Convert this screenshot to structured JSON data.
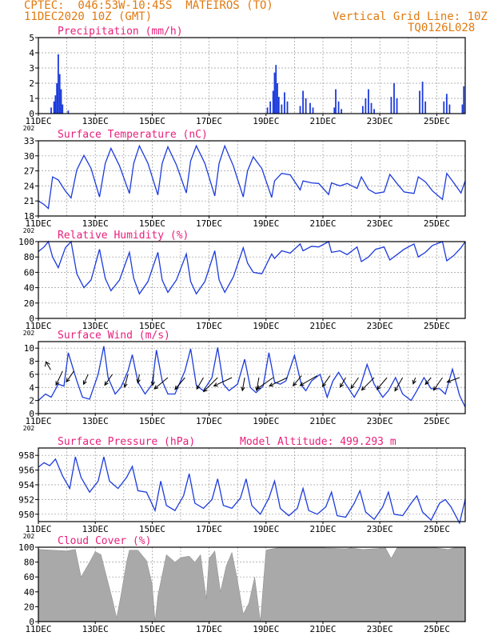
{
  "header": {
    "line1": "CPTEC:  046:53W-10:45S  MATEIROS (TO)",
    "line2": "11DEC2020 10Z (GMT)",
    "grid_note": "Vertical Grid Line: 10Z",
    "code": "TQ0126L028"
  },
  "colors": {
    "header": "#e07a10",
    "title": "#e8207c",
    "series": "#1c3bdc",
    "bars": "#1c3bdc",
    "cloud": "#a9a9a9",
    "arrow": "#000000"
  },
  "x_axis": {
    "start_day": 11,
    "end_day": 26,
    "tick_days": [
      11,
      13,
      15,
      17,
      19,
      21,
      23,
      25
    ],
    "tick_labels": [
      "11DEC",
      "13DEC",
      "15DEC",
      "17DEC",
      "19DEC",
      "21DEC",
      "23DEC",
      "25DEC"
    ],
    "year_stub": "202"
  },
  "chart_data": [
    {
      "type": "bar",
      "title": "Precipitation (mm/h)",
      "ylim": [
        0,
        5
      ],
      "yticks": [
        "0",
        "1",
        "2",
        "3",
        "4",
        "5"
      ],
      "x": [
        11.45,
        11.55,
        11.6,
        11.65,
        11.7,
        11.75,
        11.8,
        11.85,
        12.05,
        19.05,
        19.15,
        19.25,
        19.3,
        19.35,
        19.4,
        19.45,
        19.55,
        19.65,
        19.75,
        20.2,
        20.3,
        20.4,
        20.55,
        20.65,
        21.4,
        21.45,
        21.55,
        21.65,
        22.4,
        22.5,
        22.6,
        22.7,
        22.8,
        23.4,
        23.5,
        23.6,
        24.4,
        24.5,
        24.6,
        25.25,
        25.35,
        25.45,
        25.9,
        25.95
      ],
      "values": [
        0.4,
        0.8,
        1.2,
        2.0,
        3.9,
        2.6,
        1.6,
        0.6,
        0.2,
        0.4,
        0.8,
        1.5,
        2.7,
        3.2,
        2.0,
        1.1,
        0.6,
        1.4,
        0.8,
        0.5,
        1.5,
        1.0,
        0.7,
        0.4,
        0.4,
        1.6,
        0.8,
        0.3,
        0.5,
        1.0,
        1.6,
        0.7,
        0.3,
        1.1,
        2.0,
        1.0,
        1.5,
        2.1,
        0.8,
        0.8,
        1.3,
        0.6,
        0.6,
        1.8
      ]
    },
    {
      "type": "line",
      "title": "Surface Temperature (nC)",
      "ylim": [
        18,
        33
      ],
      "yticks": [
        "18",
        "21",
        "24",
        "27",
        "30",
        "33"
      ],
      "x": [
        11.0,
        11.2,
        11.35,
        11.5,
        11.7,
        11.95,
        12.15,
        12.35,
        12.6,
        12.85,
        13.15,
        13.35,
        13.55,
        13.85,
        14.2,
        14.35,
        14.55,
        14.85,
        15.2,
        15.35,
        15.55,
        15.85,
        16.2,
        16.35,
        16.55,
        16.85,
        17.2,
        17.35,
        17.55,
        17.85,
        18.2,
        18.35,
        18.55,
        18.85,
        19.2,
        19.3,
        19.55,
        19.85,
        20.2,
        20.3,
        20.6,
        20.85,
        21.2,
        21.3,
        21.6,
        21.85,
        22.2,
        22.35,
        22.6,
        22.85,
        23.15,
        23.35,
        23.6,
        23.85,
        24.2,
        24.35,
        24.6,
        24.85,
        25.2,
        25.35,
        25.6,
        25.85,
        26.0
      ],
      "values": [
        21.0,
        20.3,
        19.5,
        25.8,
        25.2,
        23.0,
        21.6,
        27.2,
        30.1,
        27.5,
        21.8,
        28.5,
        31.5,
        28.0,
        22.5,
        28.5,
        32.0,
        28.5,
        22.2,
        28.5,
        31.8,
        28.2,
        22.6,
        29.0,
        32.0,
        28.5,
        22.0,
        28.5,
        32.0,
        28.0,
        21.8,
        27.0,
        29.8,
        27.5,
        21.7,
        25.0,
        26.5,
        26.2,
        23.2,
        25.0,
        24.6,
        24.5,
        22.3,
        24.6,
        24.0,
        24.5,
        23.5,
        25.8,
        23.3,
        22.5,
        22.8,
        26.3,
        24.5,
        22.8,
        22.5,
        25.8,
        24.8,
        23.0,
        21.3,
        26.5,
        24.6,
        22.6,
        25.0
      ]
    },
    {
      "type": "line",
      "title": "Relative Humidity (%)",
      "ylim": [
        0,
        100
      ],
      "yticks": [
        "0",
        "20",
        "40",
        "60",
        "80",
        "100"
      ],
      "x": [
        11.0,
        11.2,
        11.35,
        11.5,
        11.7,
        11.95,
        12.15,
        12.35,
        12.6,
        12.85,
        13.15,
        13.35,
        13.55,
        13.85,
        14.2,
        14.35,
        14.55,
        14.85,
        15.2,
        15.35,
        15.55,
        15.85,
        16.2,
        16.35,
        16.55,
        16.85,
        17.2,
        17.35,
        17.55,
        17.85,
        18.2,
        18.35,
        18.55,
        18.85,
        19.2,
        19.3,
        19.55,
        19.85,
        20.2,
        20.3,
        20.6,
        20.85,
        21.2,
        21.3,
        21.6,
        21.85,
        22.2,
        22.35,
        22.6,
        22.85,
        23.15,
        23.35,
        23.6,
        23.85,
        24.2,
        24.35,
        24.6,
        24.85,
        25.2,
        25.35,
        25.6,
        25.85,
        26.0
      ],
      "values": [
        87,
        93,
        100,
        80,
        66,
        92,
        100,
        58,
        40,
        50,
        90,
        52,
        36,
        50,
        86,
        52,
        32,
        48,
        86,
        50,
        34,
        50,
        84,
        48,
        32,
        48,
        88,
        50,
        34,
        54,
        92,
        72,
        60,
        58,
        84,
        78,
        88,
        85,
        97,
        88,
        94,
        93,
        100,
        86,
        88,
        83,
        93,
        74,
        80,
        90,
        93,
        76,
        83,
        90,
        97,
        80,
        86,
        95,
        100,
        75,
        82,
        92,
        100
      ]
    },
    {
      "type": "line",
      "title": "Surface Wind (m/s)",
      "ylim": [
        0,
        11
      ],
      "yticks": [
        "0",
        "2",
        "4",
        "6",
        "8",
        "10"
      ],
      "x": [
        11.0,
        11.25,
        11.45,
        11.7,
        11.9,
        12.05,
        12.35,
        12.55,
        12.8,
        13.1,
        13.3,
        13.45,
        13.7,
        13.9,
        14.15,
        14.3,
        14.5,
        14.75,
        15.0,
        15.15,
        15.35,
        15.55,
        15.8,
        16.15,
        16.35,
        16.55,
        16.8,
        17.1,
        17.3,
        17.5,
        17.7,
        18.0,
        18.25,
        18.45,
        18.65,
        18.9,
        19.1,
        19.3,
        19.5,
        19.7,
        20.0,
        20.25,
        20.4,
        20.6,
        20.9,
        21.15,
        21.35,
        21.55,
        21.8,
        22.1,
        22.3,
        22.55,
        22.8,
        23.1,
        23.3,
        23.55,
        23.8,
        24.1,
        24.3,
        24.55,
        24.8,
        25.1,
        25.3,
        25.55,
        25.8,
        26.0
      ],
      "values": [
        2.0,
        3.0,
        2.5,
        4.5,
        4.2,
        9.3,
        5.0,
        2.5,
        2.2,
        6.0,
        10.3,
        5.5,
        3.0,
        4.0,
        6.5,
        9.0,
        4.8,
        3.0,
        4.5,
        9.7,
        5.0,
        3.0,
        3.0,
        6.5,
        9.9,
        4.3,
        3.5,
        5.5,
        10.1,
        4.5,
        3.5,
        4.5,
        8.3,
        4.0,
        3.2,
        4.2,
        9.3,
        4.8,
        4.5,
        5.0,
        8.9,
        4.3,
        3.5,
        5.0,
        6.0,
        2.5,
        5.0,
        6.3,
        4.5,
        2.5,
        4.0,
        7.5,
        4.5,
        2.5,
        3.5,
        5.5,
        3.0,
        2.0,
        3.5,
        5.5,
        3.8,
        3.8,
        3.0,
        6.8,
        2.8,
        1.0
      ],
      "wind_barbs": {
        "x": [
          11.85,
          12.25,
          12.75,
          13.6,
          14.15,
          14.55,
          15.05,
          15.55,
          16.15,
          16.8,
          17.3,
          17.8,
          18.25,
          18.75,
          19.25,
          19.75,
          20.25,
          20.8,
          21.25,
          21.8,
          22.25,
          22.8,
          23.25,
          23.8,
          24.25,
          24.8,
          25.2,
          25.8
        ],
        "y": [
          6.5,
          6.5,
          6.0,
          6.0,
          6.0,
          6.0,
          6.0,
          5.5,
          5.5,
          5.5,
          5.5,
          5.5,
          5.5,
          5.5,
          5.5,
          5.5,
          5.8,
          5.8,
          5.8,
          5.5,
          5.5,
          5.5,
          5.5,
          5.5,
          5.5,
          5.5,
          5.5,
          5.5
        ],
        "dir_deg": [
          205,
          215,
          205,
          215,
          195,
          190,
          185,
          230,
          220,
          210,
          225,
          245,
          190,
          190,
          235,
          245,
          220,
          240,
          215,
          210,
          215,
          225,
          220,
          210,
          200,
          220,
          215,
          250
        ],
        "speed": [
          3.5,
          3.0,
          2.5,
          3.0,
          3.0,
          2.0,
          2.5,
          4.0,
          3.5,
          3.0,
          4.5,
          4.5,
          3.0,
          3.0,
          4.5,
          4.5,
          3.0,
          4.5,
          3.0,
          2.5,
          3.0,
          4.0,
          3.5,
          3.5,
          1.5,
          2.0,
          3.5,
          3.0
        ]
      },
      "north_arrow": {
        "x": 11.35,
        "y": 7.3
      }
    },
    {
      "type": "line",
      "title": "Surface Pressure (hPa)",
      "subtitle": "Model Altitude: 499.293 m",
      "ylim": [
        949,
        959
      ],
      "yticks": [
        "950",
        "952",
        "954",
        "956",
        "958"
      ],
      "x": [
        11.0,
        11.2,
        11.4,
        11.6,
        11.85,
        12.1,
        12.3,
        12.5,
        12.8,
        13.1,
        13.3,
        13.5,
        13.8,
        14.1,
        14.3,
        14.5,
        14.8,
        15.1,
        15.3,
        15.5,
        15.8,
        16.1,
        16.3,
        16.5,
        16.8,
        17.1,
        17.3,
        17.5,
        17.8,
        18.1,
        18.3,
        18.5,
        18.8,
        19.1,
        19.3,
        19.5,
        19.8,
        20.1,
        20.3,
        20.5,
        20.8,
        21.1,
        21.3,
        21.5,
        21.8,
        22.1,
        22.3,
        22.5,
        22.8,
        23.1,
        23.3,
        23.5,
        23.8,
        24.1,
        24.3,
        24.5,
        24.8,
        25.1,
        25.3,
        25.5,
        25.8,
        26.0
      ],
      "values": [
        956.4,
        957.0,
        956.6,
        957.5,
        955.2,
        953.5,
        957.8,
        955.0,
        953.0,
        954.5,
        957.8,
        954.5,
        953.5,
        955.0,
        956.5,
        953.2,
        953.0,
        950.5,
        954.5,
        951.2,
        950.5,
        952.5,
        955.5,
        951.5,
        950.8,
        952.0,
        954.8,
        951.2,
        950.8,
        952.2,
        954.8,
        951.2,
        950.0,
        952.2,
        954.5,
        950.8,
        949.8,
        950.8,
        953.5,
        950.5,
        950.0,
        951.0,
        953.0,
        949.8,
        949.6,
        951.5,
        953.2,
        950.3,
        949.3,
        951.0,
        953.0,
        950.0,
        949.8,
        951.5,
        952.5,
        950.3,
        949.2,
        951.5,
        952.0,
        951.0,
        948.8,
        952.0
      ]
    },
    {
      "type": "area",
      "title": "Cloud Cover (%)",
      "ylim": [
        0,
        100
      ],
      "yticks": [
        "0",
        "20",
        "40",
        "60",
        "80",
        "100"
      ],
      "x": [
        11.0,
        11.5,
        12.0,
        12.3,
        12.5,
        12.8,
        13.0,
        13.2,
        13.4,
        13.6,
        13.75,
        13.9,
        14.1,
        14.2,
        14.5,
        14.8,
        15.0,
        15.1,
        15.2,
        15.5,
        15.8,
        16.0,
        16.3,
        16.5,
        16.7,
        16.9,
        17.0,
        17.2,
        17.4,
        17.6,
        17.8,
        18.0,
        18.2,
        18.4,
        18.6,
        18.8,
        19.0,
        19.1,
        19.4,
        20.0,
        21.0,
        21.8,
        22.0,
        22.4,
        22.8,
        23.2,
        23.4,
        23.6,
        24.0,
        24.5,
        25.0,
        25.4,
        25.6,
        26.0
      ],
      "values": [
        97,
        96,
        95,
        97,
        60,
        80,
        94,
        90,
        60,
        30,
        5,
        35,
        80,
        96,
        96,
        82,
        50,
        0,
        35,
        90,
        80,
        86,
        88,
        80,
        90,
        30,
        85,
        95,
        40,
        75,
        93,
        55,
        10,
        25,
        60,
        0,
        96,
        97,
        99,
        99,
        99,
        98,
        99,
        97,
        98,
        99,
        85,
        99,
        99,
        99,
        99,
        97,
        99,
        99
      ]
    }
  ]
}
